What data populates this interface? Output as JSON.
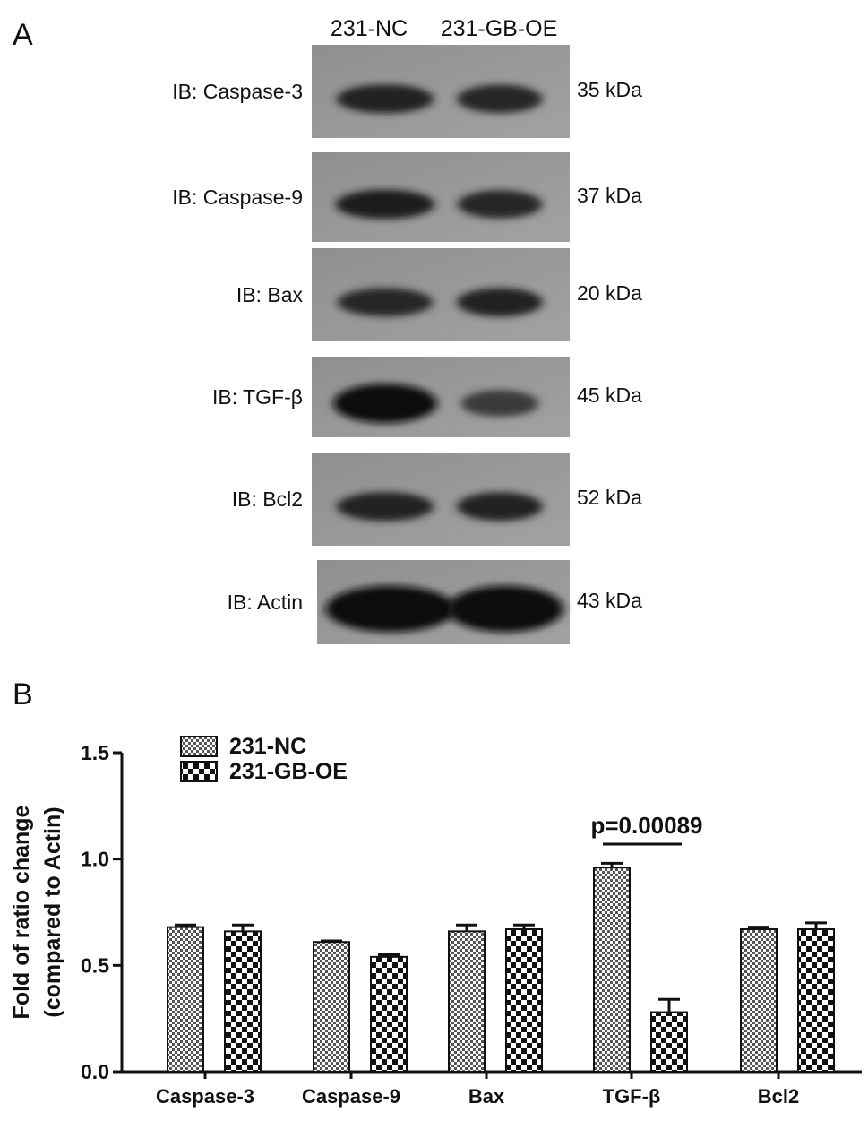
{
  "panel_a": {
    "letter": "A",
    "lanes": [
      "231-NC",
      "231-GB-OE"
    ],
    "blots": [
      {
        "label": "IB: Caspase-3",
        "size": "35 kDa",
        "intensity": [
          0.78,
          0.72
        ]
      },
      {
        "label": "IB: Caspase-9",
        "size": "37 kDa",
        "intensity": [
          0.85,
          0.7
        ]
      },
      {
        "label": "IB: Bax",
        "size": "20 kDa",
        "intensity": [
          0.72,
          0.74
        ]
      },
      {
        "label": "IB: TGF-β",
        "size": "45 kDa",
        "intensity": [
          1.0,
          0.45
        ]
      },
      {
        "label": "IB: Bcl2",
        "size": "52 kDa",
        "intensity": [
          0.78,
          0.74
        ]
      },
      {
        "label": "IB: Actin",
        "size": "43 kDa",
        "intensity": [
          1.0,
          1.0
        ]
      }
    ]
  },
  "panel_b": {
    "letter": "B"
  },
  "chart_data": {
    "type": "bar",
    "title": "",
    "xlabel": "",
    "ylabel": "Fold of ratio change (compared to Actin)",
    "ylabel_lines": [
      "Fold of ratio change",
      "(compared to Actin)"
    ],
    "ylim": [
      0.0,
      1.5
    ],
    "yticks": [
      "0.0",
      "0.5",
      "1.0",
      "1.5"
    ],
    "ytick_values": [
      0.0,
      0.5,
      1.0,
      1.5
    ],
    "categories": [
      "Caspase-3",
      "Caspase-9",
      "Bax",
      "TGF-β",
      "Bcl2"
    ],
    "series": [
      {
        "name": "231-NC",
        "values": [
          0.68,
          0.61,
          0.66,
          0.96,
          0.67
        ],
        "errors": [
          0.01,
          0.005,
          0.03,
          0.02,
          0.01
        ],
        "pattern": "fine-check"
      },
      {
        "name": "231-GB-OE",
        "values": [
          0.66,
          0.54,
          0.67,
          0.28,
          0.67
        ],
        "errors": [
          0.03,
          0.01,
          0.02,
          0.06,
          0.03
        ],
        "pattern": "coarse-check"
      }
    ],
    "legend_position": "top-left",
    "annotations": [
      {
        "text": "p=0.00089",
        "category": "TGF-β",
        "y": 1.07
      }
    ]
  }
}
